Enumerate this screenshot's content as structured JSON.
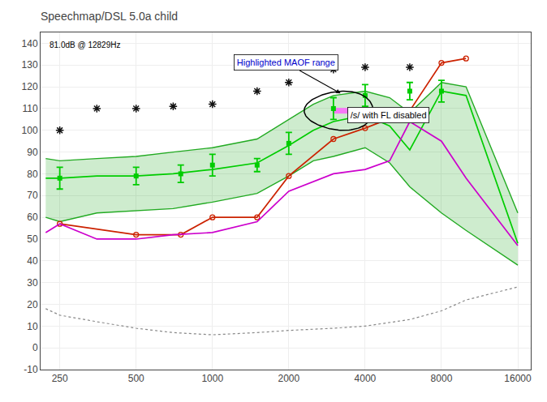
{
  "chart_data": {
    "type": "line",
    "title": "Speechmap/DSL 5.0a child",
    "log": "x",
    "grid": true,
    "xlim": [
      210,
      18000
    ],
    "xticks": [
      250,
      500,
      1000,
      2000,
      4000,
      8000,
      16000
    ],
    "ylim": [
      -10,
      145
    ],
    "yticks": [
      -10,
      0,
      10,
      20,
      30,
      40,
      50,
      60,
      70,
      80,
      90,
      100,
      110,
      120,
      130,
      140
    ],
    "series": [
      {
        "type": "band",
        "color": "#22aa22",
        "x": [
          220,
          250,
          350,
          500,
          700,
          1000,
          1500,
          2000,
          2500,
          3000,
          4000,
          5000,
          6000,
          8000,
          10000,
          16000
        ],
        "lower": [
          60,
          58,
          62,
          63,
          64,
          67,
          71,
          79,
          86,
          88,
          92,
          85,
          74,
          62,
          54,
          38
        ],
        "upper": [
          87,
          86,
          87,
          88,
          90,
          92,
          96,
          105,
          112,
          116,
          118,
          115,
          108,
          122,
          120,
          62
        ]
      },
      {
        "type": "line",
        "color": "#00cc00",
        "x": [
          220,
          250,
          350,
          500,
          700,
          1000,
          1500,
          2000,
          2500,
          3000,
          4000,
          5000,
          6000,
          8000,
          10000,
          16000
        ],
        "values": [
          78,
          78,
          79,
          79,
          80,
          82,
          85,
          93,
          100,
          104,
          107,
          102,
          91,
          118,
          116,
          48
        ]
      },
      {
        "type": "line",
        "color": "#cc2200",
        "marker": "open circle",
        "x": [
          250,
          500,
          750,
          1000,
          1500,
          2000,
          3000,
          4000,
          6000,
          8000,
          10000
        ],
        "values": [
          57,
          52,
          52,
          60,
          60,
          79,
          96,
          101,
          109,
          131,
          133
        ]
      },
      {
        "type": "line",
        "color": "#cc00cc",
        "x": [
          220,
          250,
          350,
          500,
          700,
          1000,
          1500,
          2000,
          3000,
          4000,
          5000,
          6000,
          8000,
          10000,
          16000
        ],
        "values": [
          53,
          57,
          50,
          50,
          52,
          53,
          58,
          72,
          80,
          82,
          86,
          104,
          95,
          78,
          47
        ]
      },
      {
        "type": "highlight",
        "color": "#ff66ff",
        "x": [
          3000,
          3500
        ],
        "values": [
          109,
          109
        ]
      },
      {
        "type": "line",
        "color": "#888888",
        "line_style": "dotted",
        "x": [
          220,
          250,
          350,
          500,
          700,
          1000,
          1500,
          2000,
          3000,
          4000,
          6000,
          8000,
          10000,
          16000
        ],
        "values": [
          18,
          15,
          12,
          9,
          7,
          6,
          7,
          8,
          9,
          10,
          13,
          17,
          22,
          28
        ]
      },
      {
        "type": "errorbar",
        "color": "#00cc00",
        "marker": "square",
        "x": [
          250,
          500,
          750,
          1000,
          1500,
          2000,
          3000,
          4000,
          6000,
          8000
        ],
        "values": [
          78,
          79,
          80,
          84,
          84,
          94,
          110,
          116,
          118,
          118
        ],
        "error": [
          5,
          4,
          4,
          5,
          3,
          5,
          5,
          5,
          4,
          5
        ]
      },
      {
        "type": "points",
        "color": "#111111",
        "marker": "asterisk",
        "x": [
          250,
          350,
          500,
          700,
          1000,
          1500,
          2000,
          3000,
          4000,
          6000
        ],
        "values": [
          100,
          110,
          110,
          111,
          112,
          118,
          122,
          128,
          129,
          129
        ]
      }
    ],
    "ellipse": {
      "x": 3300,
      "y": 109,
      "width": 2000,
      "height": 18
    },
    "annotations": [
      {
        "text": "81.0dB @ 12829Hz"
      },
      {
        "text": "Highlighted MAOF range",
        "x": 3200,
        "y": 117,
        "color": "#0000cc"
      },
      {
        "text": "/s/ with FL disabled",
        "x": 3400,
        "y": 108,
        "color": "#000000"
      }
    ]
  }
}
